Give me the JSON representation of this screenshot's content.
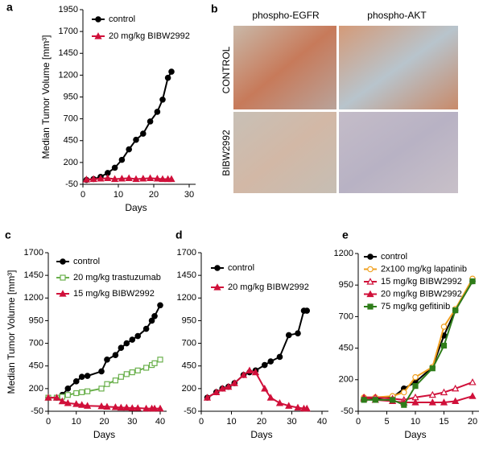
{
  "chart_data": [
    {
      "type": "line",
      "label": "a",
      "xlabel": "Days",
      "ylabel": "Median Tumor Volume [mm³]",
      "x": [
        1,
        3,
        5,
        7,
        9,
        11,
        13,
        15,
        17,
        19,
        21,
        22.5,
        24,
        25
      ],
      "xlim": [
        0,
        30
      ],
      "xticks": [
        0,
        10,
        20,
        30
      ],
      "ylim": [
        -50,
        1950
      ],
      "yticks": [
        -50,
        200,
        450,
        700,
        950,
        1200,
        1450,
        1700,
        1950
      ],
      "series": [
        {
          "name": "control",
          "color": "#000000",
          "marker": "circle",
          "values": [
            0,
            10,
            35,
            80,
            140,
            230,
            350,
            460,
            530,
            670,
            780,
            920,
            1170,
            1240
          ]
        },
        {
          "name": "20 mg/kg BIBW2992",
          "color": "#d0103a",
          "marker": "triangle",
          "values": [
            5,
            10,
            15,
            20,
            10,
            15,
            20,
            10,
            15,
            20,
            15,
            10,
            10,
            10
          ]
        }
      ]
    },
    {
      "type": "line",
      "label": "c",
      "xlabel": "Days",
      "ylabel": "Median Tumor Volume [mm³]",
      "x": [
        0,
        3,
        5,
        7,
        10,
        12,
        14,
        19,
        21,
        24,
        26,
        28,
        30,
        32,
        35,
        37,
        38,
        40
      ],
      "xlim": [
        0,
        40
      ],
      "xticks": [
        0,
        10,
        20,
        30,
        40
      ],
      "ylim": [
        -50,
        1700
      ],
      "yticks": [
        -50,
        200,
        450,
        700,
        950,
        1200,
        1450,
        1700
      ],
      "series": [
        {
          "name": "control",
          "color": "#000000",
          "marker": "circle",
          "values": [
            100,
            100,
            130,
            200,
            280,
            330,
            340,
            390,
            520,
            570,
            650,
            700,
            740,
            780,
            860,
            950,
            1000,
            1120
          ]
        },
        {
          "name": "20 mg/kg trastuzumab",
          "color": "#6ab04c",
          "marker": "open-square",
          "values": [
            100,
            100,
            110,
            130,
            150,
            160,
            170,
            200,
            250,
            290,
            330,
            360,
            380,
            400,
            430,
            460,
            480,
            520
          ]
        },
        {
          "name": "15 mg/kg BIBW2992",
          "color": "#d0103a",
          "marker": "triangle",
          "values": [
            100,
            100,
            60,
            40,
            30,
            20,
            10,
            5,
            0,
            -5,
            -10,
            -10,
            -15,
            -15,
            -20,
            -20,
            -20,
            -20
          ]
        }
      ]
    },
    {
      "type": "line",
      "label": "d",
      "xlabel": "Days",
      "x": [
        2,
        5,
        7,
        9,
        11,
        14,
        16,
        18,
        21,
        23,
        26,
        29,
        32,
        34,
        35
      ],
      "xlim": [
        0,
        40
      ],
      "xticks": [
        0,
        10,
        20,
        30,
        40
      ],
      "ylim": [
        -50,
        1700
      ],
      "yticks": [
        -50,
        200,
        450,
        700,
        950,
        1200,
        1450,
        1700
      ],
      "series": [
        {
          "name": "control",
          "color": "#000000",
          "marker": "circle",
          "values": [
            100,
            160,
            200,
            220,
            260,
            350,
            380,
            400,
            460,
            500,
            550,
            790,
            810,
            1060,
            1060
          ]
        },
        {
          "name": "20 mg/kg BIBW2992",
          "color": "#d0103a",
          "marker": "triangle",
          "values": [
            100,
            160,
            200,
            220,
            260,
            350,
            400,
            380,
            200,
            100,
            40,
            10,
            -10,
            -20,
            -20
          ]
        }
      ]
    },
    {
      "type": "line",
      "label": "e",
      "xlabel": "Days",
      "x": [
        1,
        3,
        6,
        8,
        10,
        13,
        15,
        17,
        20
      ],
      "xlim": [
        0,
        20
      ],
      "xticks": [
        0,
        5,
        10,
        15,
        20
      ],
      "ylim": [
        -50,
        1200
      ],
      "yticks": [
        -50,
        200,
        450,
        700,
        950,
        1200
      ],
      "series": [
        {
          "name": "control",
          "color": "#000000",
          "marker": "circle",
          "values": [
            50,
            50,
            60,
            130,
            180,
            300,
            550,
            750,
            980
          ]
        },
        {
          "name": "2x100 mg/kg lapatinib",
          "color": "#f0a020",
          "marker": "open-circle",
          "values": [
            60,
            60,
            70,
            100,
            220,
            300,
            620,
            760,
            1000
          ]
        },
        {
          "name": "15 mg/kg BIBW2992",
          "color": "#d0103a",
          "marker": "open-triangle",
          "values": [
            60,
            60,
            50,
            40,
            60,
            80,
            100,
            130,
            180
          ]
        },
        {
          "name": "20 mg/kg BIBW2992",
          "color": "#d0103a",
          "marker": "triangle",
          "values": [
            50,
            40,
            30,
            20,
            20,
            20,
            20,
            30,
            70
          ]
        },
        {
          "name": "75 mg/kg gefitinib",
          "color": "#2e7d1a",
          "marker": "square",
          "values": [
            40,
            40,
            40,
            0,
            150,
            290,
            470,
            750,
            980
          ]
        }
      ]
    }
  ],
  "image_panel": {
    "label": "b",
    "columns": [
      "phospho-EGFR",
      "phospho-AKT"
    ],
    "rows": [
      "CONTROL",
      "BIBW2992"
    ]
  }
}
